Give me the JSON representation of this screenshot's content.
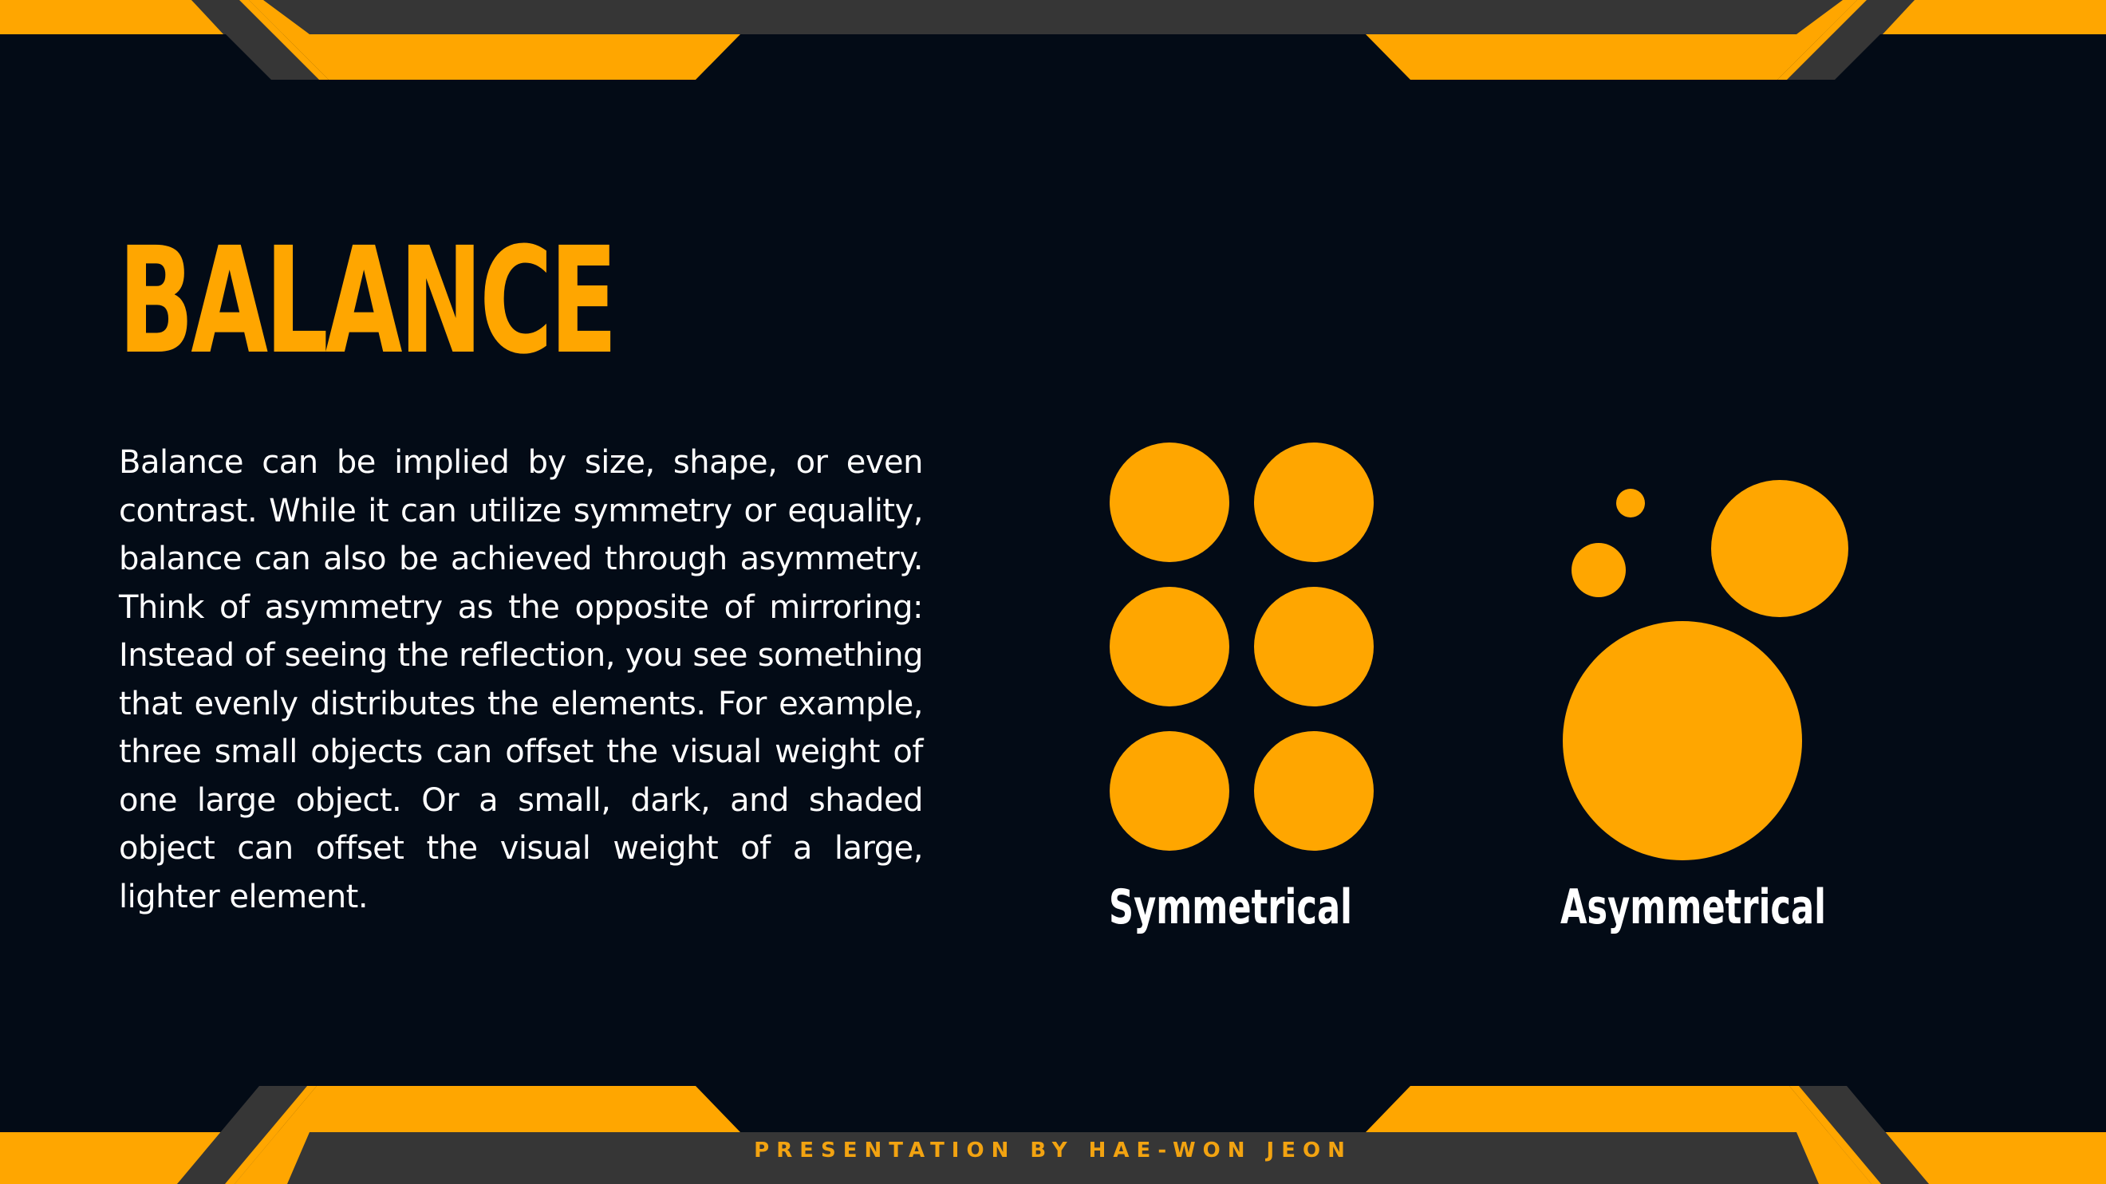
{
  "slide": {
    "title": "BALANCE",
    "body": "Balance can be implied by size, shape, or even contrast. While it can utilize symmetry or equality, balance can also be achieved through asymmetry. Think of asymmetry as the opposite of mirroring: Instead of seeing the reflection, you see something that evenly distributes the elements. For example, three small objects can offset the visual weight of one large object. Or a small, dark, and shaded object can offset the visual weight of a large, lighter element.",
    "footer": "PRESENTATION BY HAE-WON JEON"
  },
  "illustration": {
    "symmetrical_label": "Symmetrical",
    "asymmetrical_label": "Asymmetrical"
  },
  "colors": {
    "background": "#030b16",
    "accent": "#ffa600",
    "frame_gray": "#363636",
    "text": "#ffffff"
  }
}
